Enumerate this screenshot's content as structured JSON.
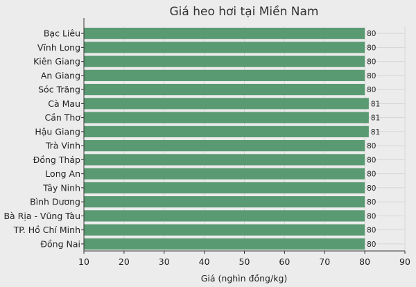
{
  "chart_data": {
    "type": "bar",
    "orientation": "horizontal",
    "title": "Giá heo hơi tại Miền Nam",
    "xlabel": "Giá (nghìn đồng/kg)",
    "ylabel": "",
    "xlim": [
      10,
      90
    ],
    "xticks": [
      10,
      20,
      30,
      40,
      50,
      60,
      70,
      80,
      90
    ],
    "grid": true,
    "bar_color": "#5a9a72",
    "categories": [
      "Bạc Liêu",
      "Vĩnh Long",
      "Kiên Giang",
      "An Giang",
      "Sóc Trăng",
      "Cà Mau",
      "Cần Thơ",
      "Hậu Giang",
      "Trà Vinh",
      "Đồng Tháp",
      "Long An",
      "Tây Ninh",
      "Bình Dương",
      "Bà Rịa - Vũng Tàu",
      "TP. Hồ Chí Minh",
      "Đồng Nai"
    ],
    "values": [
      80,
      80,
      80,
      80,
      80,
      81,
      81,
      81,
      80,
      80,
      80,
      80,
      80,
      80,
      80,
      80
    ]
  }
}
